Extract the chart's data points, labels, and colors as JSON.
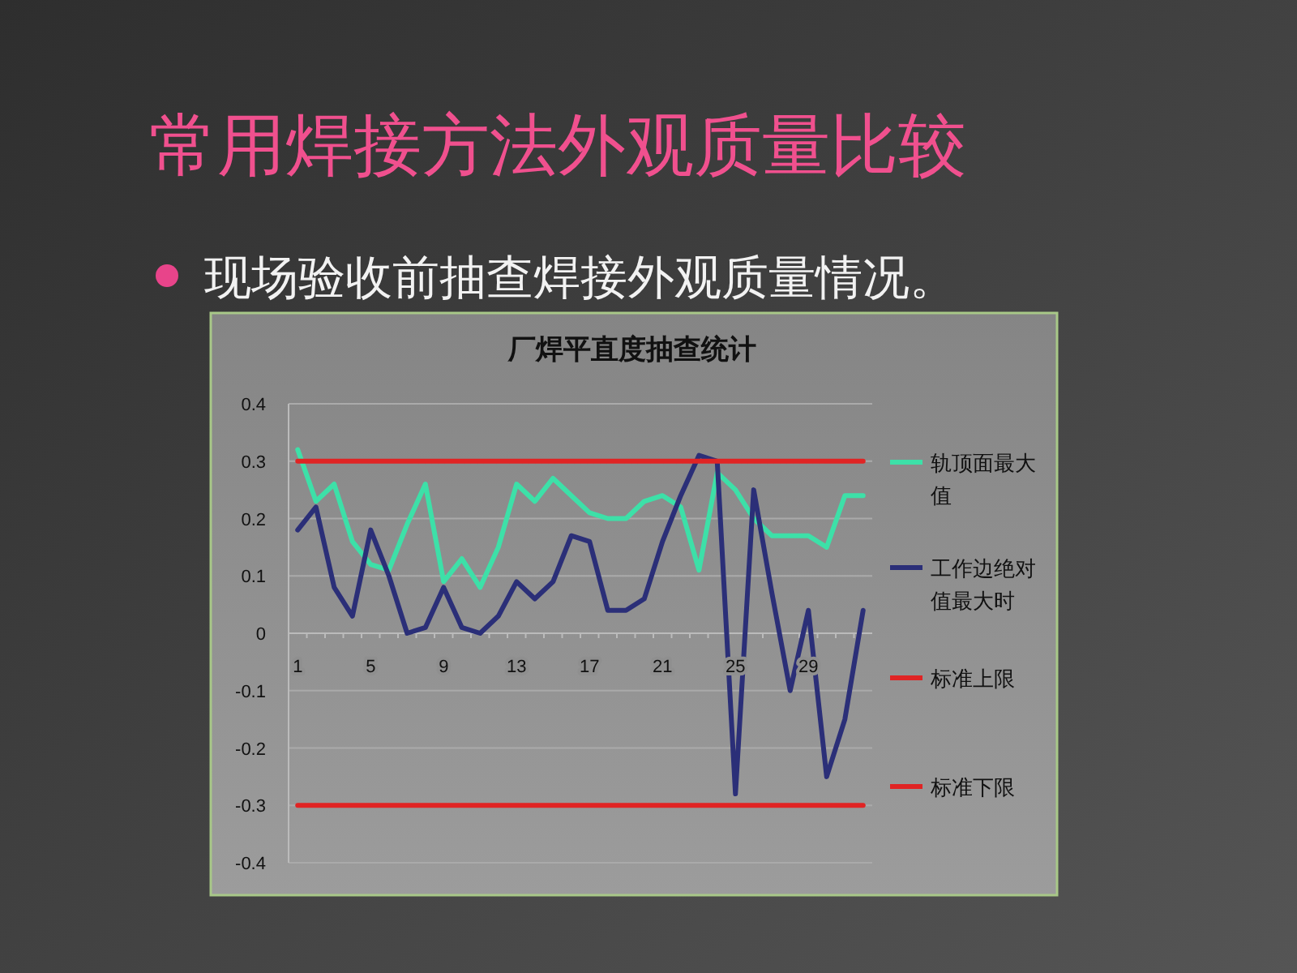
{
  "chart_data": {
    "type": "line",
    "title": "常用焊接方法外观质量比较",
    "subtitle": "厂焊平直度抽查统计",
    "annotations": [
      "现场验收前抽查焊接外观质量情况。"
    ],
    "categories": [
      "1",
      null,
      null,
      null,
      "5",
      null,
      null,
      null,
      "9",
      null,
      null,
      null,
      "13",
      null,
      null,
      null,
      "17",
      null,
      null,
      null,
      "21",
      null,
      null,
      null,
      "25",
      null,
      null,
      null,
      "29",
      null,
      null,
      null
    ],
    "series": [
      {
        "name": "轨顶面最大值",
        "color": "#3de0a8",
        "values": [
          0.32,
          0.23,
          0.26,
          0.16,
          0.12,
          0.11,
          0.19,
          0.26,
          0.09,
          0.13,
          0.08,
          0.15,
          0.26,
          0.23,
          0.27,
          0.24,
          0.21,
          0.2,
          0.2,
          0.23,
          0.24,
          0.22,
          0.11,
          0.28,
          0.25,
          0.2,
          0.17,
          0.17,
          0.17,
          0.15,
          0.24,
          0.24
        ]
      },
      {
        "name": "工作边绝对值最大时",
        "color": "#2b2f78",
        "values": [
          0.18,
          0.22,
          0.08,
          0.03,
          0.18,
          0.1,
          0.0,
          0.01,
          0.08,
          0.01,
          0.0,
          0.03,
          0.09,
          0.06,
          0.09,
          0.17,
          0.16,
          0.04,
          0.04,
          0.06,
          0.16,
          0.24,
          0.31,
          0.3,
          -0.28,
          0.25,
          0.07,
          -0.1,
          0.04,
          -0.25,
          -0.15,
          0.04
        ]
      },
      {
        "name": "标准上限",
        "color": "#e02424",
        "values": [
          0.3,
          0.3,
          0.3,
          0.3,
          0.3,
          0.3,
          0.3,
          0.3,
          0.3,
          0.3,
          0.3,
          0.3,
          0.3,
          0.3,
          0.3,
          0.3,
          0.3,
          0.3,
          0.3,
          0.3,
          0.3,
          0.3,
          0.3,
          0.3,
          0.3,
          0.3,
          0.3,
          0.3,
          0.3,
          0.3,
          0.3,
          0.3
        ]
      },
      {
        "name": "标准下限",
        "color": "#e02424",
        "values": [
          -0.3,
          -0.3,
          -0.3,
          -0.3,
          -0.3,
          -0.3,
          -0.3,
          -0.3,
          -0.3,
          -0.3,
          -0.3,
          -0.3,
          -0.3,
          -0.3,
          -0.3,
          -0.3,
          -0.3,
          -0.3,
          -0.3,
          -0.3,
          -0.3,
          -0.3,
          -0.3,
          -0.3,
          -0.3,
          -0.3,
          -0.3,
          -0.3,
          -0.3,
          -0.3,
          -0.3,
          -0.3
        ]
      }
    ],
    "ylim": [
      -0.4,
      0.4
    ],
    "yticks": [
      -0.4,
      -0.3,
      -0.2,
      -0.1,
      0,
      0.1,
      0.2,
      0.3,
      0.4
    ],
    "grid": "y",
    "legend": "right",
    "marker": "none",
    "line_style": "solid"
  }
}
